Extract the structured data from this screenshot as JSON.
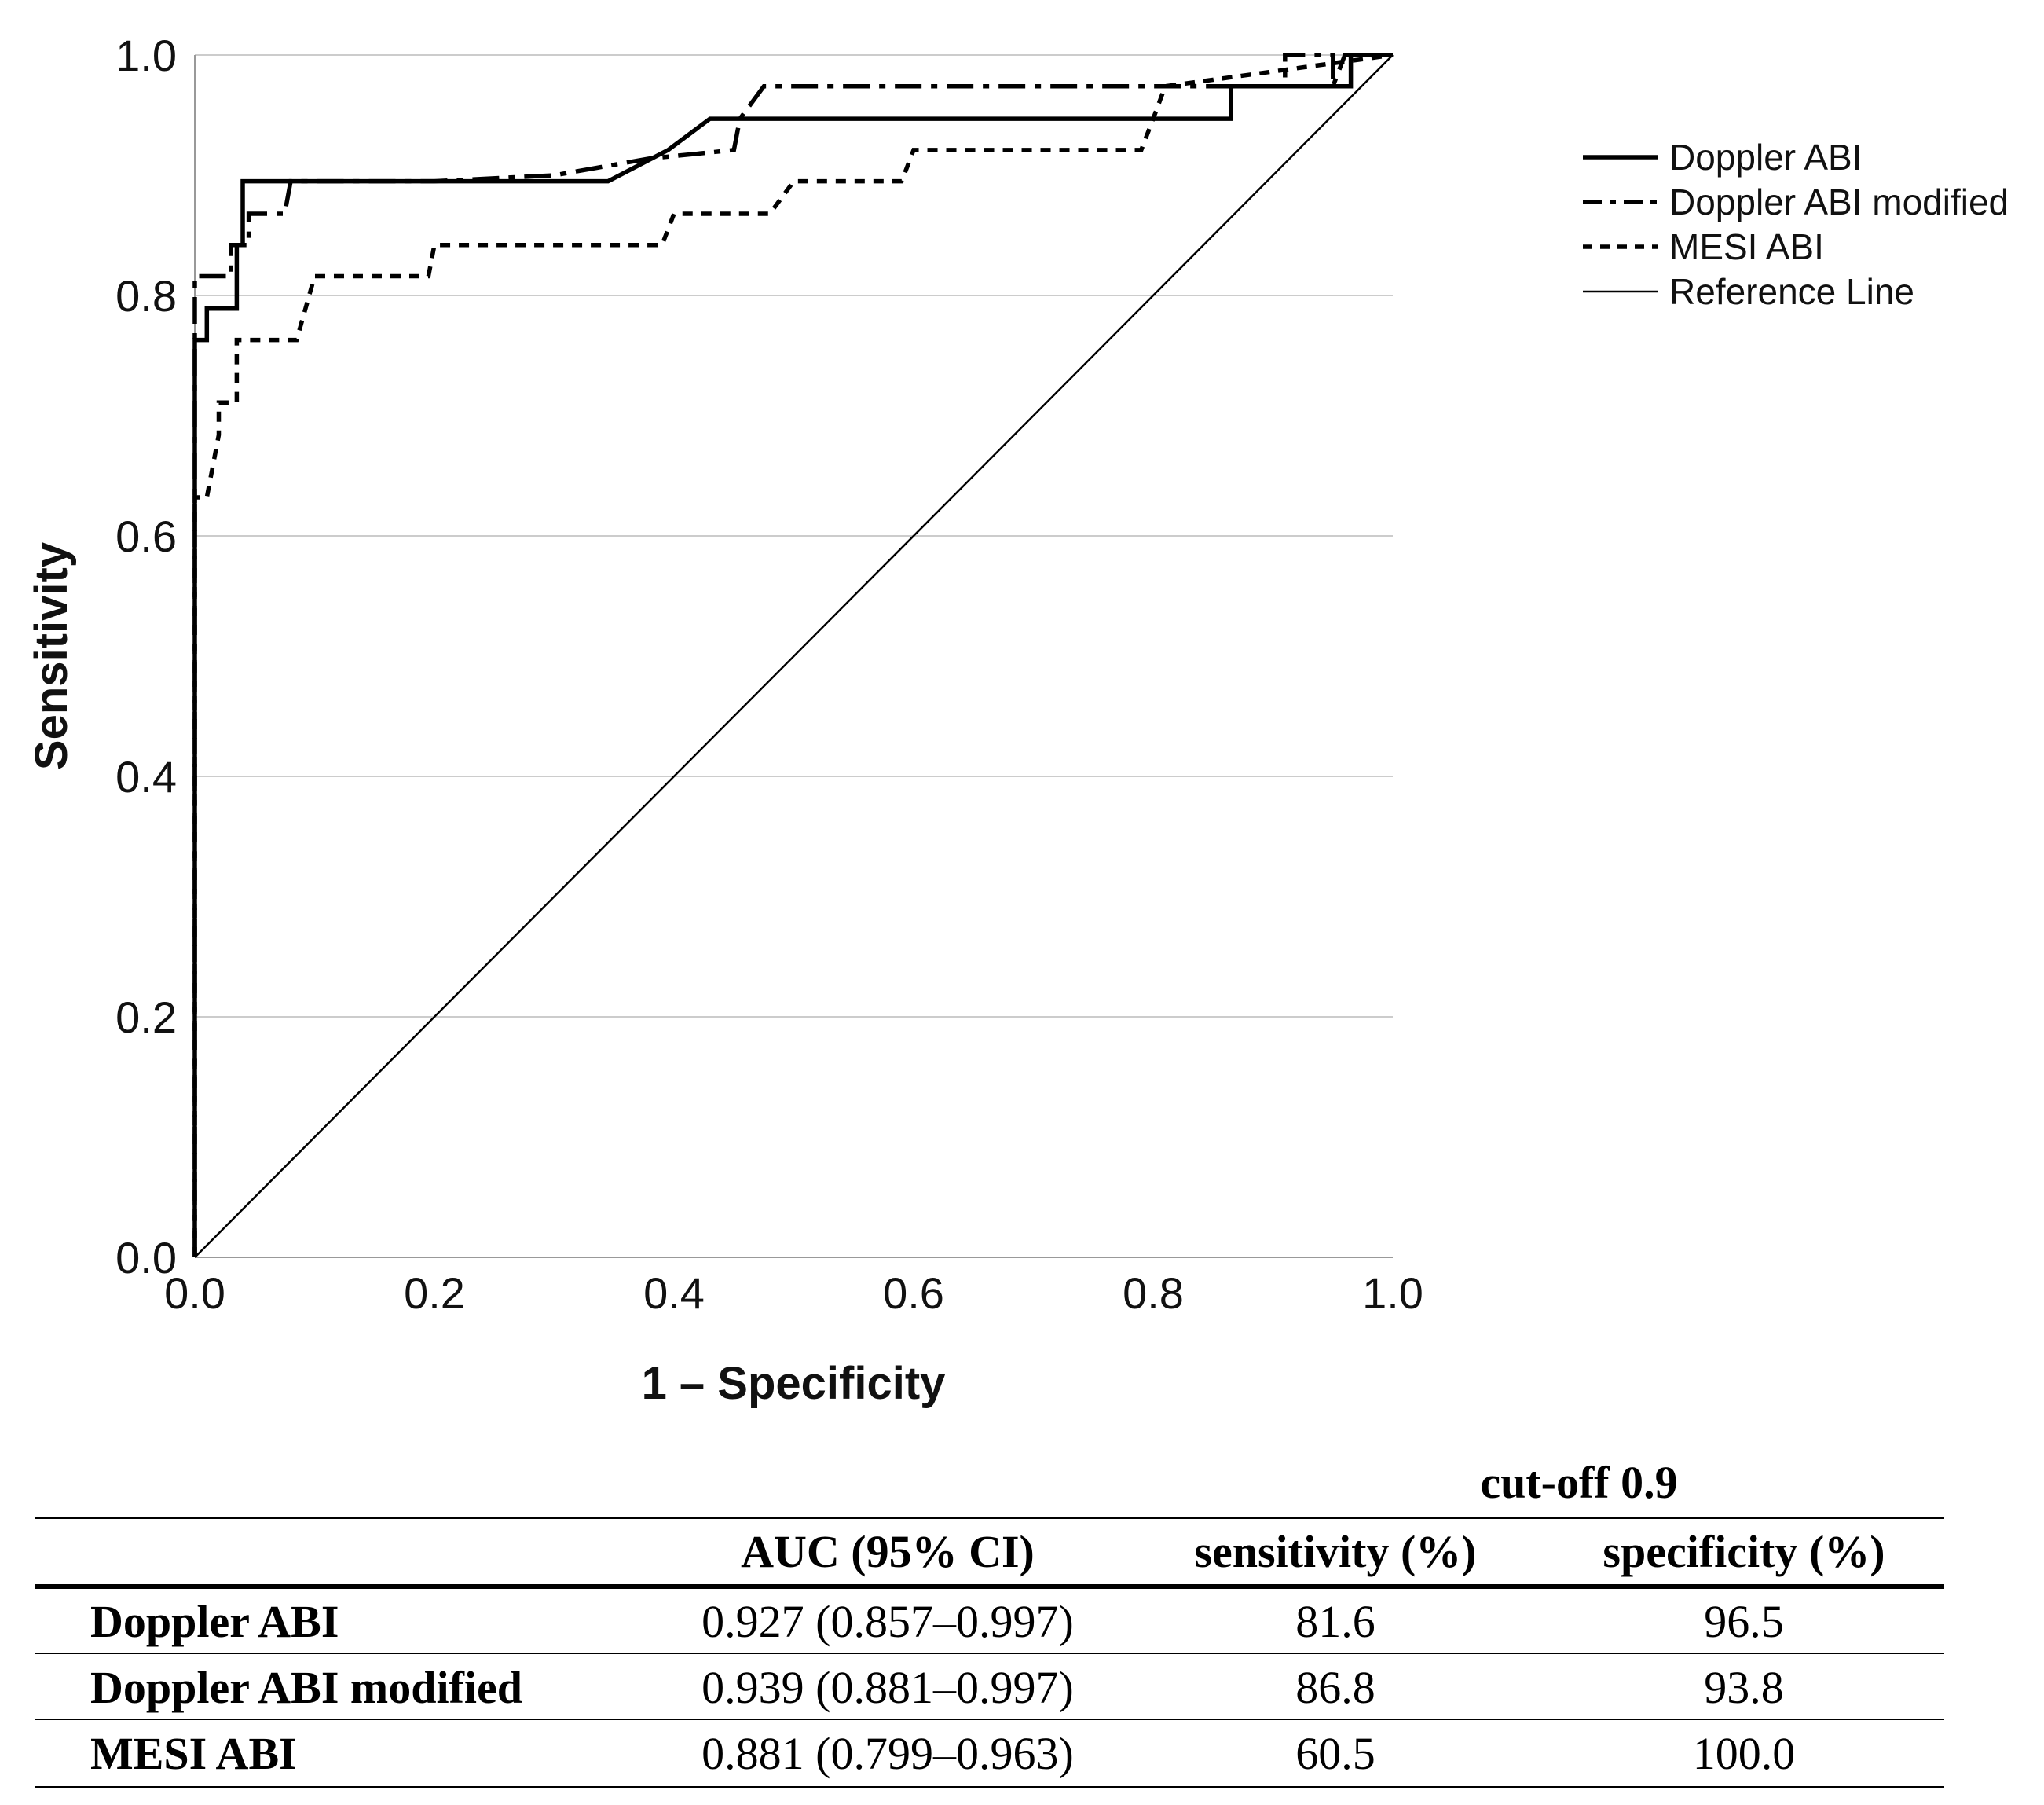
{
  "chart_data": {
    "type": "line",
    "title": "",
    "xlabel": "1 – Specificity",
    "ylabel": "Sensitivity",
    "xlim": [
      0,
      1
    ],
    "ylim": [
      0,
      1
    ],
    "xticks": [
      "0.0",
      "0.2",
      "0.4",
      "0.6",
      "0.8",
      "1.0"
    ],
    "yticks": [
      "0.0",
      "0.2",
      "0.4",
      "0.6",
      "0.8",
      "1.0"
    ],
    "grid": "horizontal",
    "legend_position": "right",
    "series": [
      {
        "name": "Doppler ABI",
        "style": "solid-thick",
        "points": [
          [
            0,
            0
          ],
          [
            0,
            0.763
          ],
          [
            0.01,
            0.763
          ],
          [
            0.01,
            0.789
          ],
          [
            0.035,
            0.789
          ],
          [
            0.035,
            0.842
          ],
          [
            0.04,
            0.842
          ],
          [
            0.04,
            0.895
          ],
          [
            0.345,
            0.895
          ],
          [
            0.395,
            0.921
          ],
          [
            0.43,
            0.947
          ],
          [
            0.865,
            0.947
          ],
          [
            0.865,
            0.974
          ],
          [
            0.965,
            0.974
          ],
          [
            0.965,
            1.0
          ],
          [
            1.0,
            1.0
          ]
        ]
      },
      {
        "name": "Doppler ABI modified",
        "style": "dash-dot",
        "points": [
          [
            0,
            0
          ],
          [
            0,
            0.816
          ],
          [
            0.03,
            0.816
          ],
          [
            0.03,
            0.842
          ],
          [
            0.045,
            0.842
          ],
          [
            0.045,
            0.868
          ],
          [
            0.075,
            0.868
          ],
          [
            0.08,
            0.895
          ],
          [
            0.2,
            0.895
          ],
          [
            0.3,
            0.9
          ],
          [
            0.38,
            0.914
          ],
          [
            0.45,
            0.921
          ],
          [
            0.455,
            0.947
          ],
          [
            0.475,
            0.974
          ],
          [
            0.91,
            0.974
          ],
          [
            0.91,
            1.0
          ],
          [
            0.95,
            1.0
          ],
          [
            0.95,
            0.974
          ],
          [
            0.96,
            1.0
          ],
          [
            1.0,
            1.0
          ]
        ]
      },
      {
        "name": "MESI ABI",
        "style": "dotted",
        "points": [
          [
            0,
            0
          ],
          [
            0,
            0.632
          ],
          [
            0.01,
            0.632
          ],
          [
            0.015,
            0.658
          ],
          [
            0.02,
            0.684
          ],
          [
            0.02,
            0.711
          ],
          [
            0.035,
            0.711
          ],
          [
            0.035,
            0.763
          ],
          [
            0.085,
            0.763
          ],
          [
            0.1,
            0.816
          ],
          [
            0.195,
            0.816
          ],
          [
            0.2,
            0.842
          ],
          [
            0.39,
            0.842
          ],
          [
            0.4,
            0.868
          ],
          [
            0.48,
            0.868
          ],
          [
            0.5,
            0.895
          ],
          [
            0.59,
            0.895
          ],
          [
            0.6,
            0.921
          ],
          [
            0.79,
            0.921
          ],
          [
            0.8,
            0.947
          ],
          [
            0.81,
            0.974
          ],
          [
            1.0,
            1.0
          ]
        ]
      },
      {
        "name": "Reference Line",
        "style": "thin",
        "points": [
          [
            0,
            0
          ],
          [
            1,
            1
          ]
        ]
      }
    ]
  },
  "table": {
    "group_header": "cut-off 0.9",
    "columns": [
      "AUC (95% CI)",
      "sensitivity (%)",
      "specificity (%)"
    ],
    "rows": [
      {
        "name": "Doppler ABI",
        "auc": "0.927 (0.857–0.997)",
        "sensitivity": "81.6",
        "specificity": "96.5"
      },
      {
        "name": "Doppler ABI modified",
        "auc": "0.939 (0.881–0.997)",
        "sensitivity": "86.8",
        "specificity": "93.8"
      },
      {
        "name": "MESI ABI",
        "auc": "0.881 (0.799–0.963)",
        "sensitivity": "60.5",
        "specificity": "100.0"
      }
    ]
  }
}
